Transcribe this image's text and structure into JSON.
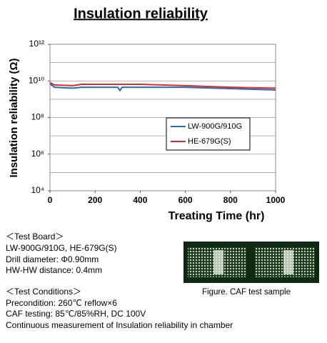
{
  "chart_data": {
    "type": "line",
    "title": "Insulation reliability",
    "xlabel": "Treating Time (hr)",
    "ylabel": "Insulation reliability (Ω)",
    "xlim": [
      0,
      1000
    ],
    "xticks": [
      0,
      200,
      400,
      600,
      800,
      1000
    ],
    "yscale": "log",
    "ylim": [
      10000.0,
      1000000000000.0
    ],
    "yticks": [
      {
        "value": 10000.0,
        "label": "10⁴"
      },
      {
        "value": 1000000.0,
        "label": "10⁶"
      },
      {
        "value": 100000000.0,
        "label": "10⁸"
      },
      {
        "value": 10000000000.0,
        "label": "10¹⁰"
      },
      {
        "value": 1000000000000.0,
        "label": "10¹²"
      }
    ],
    "ygrid": [
      100000.0,
      1000000.0,
      10000000.0,
      100000000.0,
      1000000000.0,
      10000000000.0,
      100000000000.0
    ],
    "legend": "center-right",
    "series": [
      {
        "name": "LW-900G/910G",
        "color": "#1f6fb8",
        "x": [
          0,
          20,
          100,
          140,
          300,
          310,
          320,
          600,
          800,
          1000
        ],
        "values": [
          7000000000.0,
          4500000000.0,
          4000000000.0,
          4500000000.0,
          4500000000.0,
          3000000000.0,
          4500000000.0,
          4500000000.0,
          3800000000.0,
          3200000000.0
        ]
      },
      {
        "name": "HE-679G(S)",
        "color": "#e8262a",
        "x": [
          0,
          20,
          100,
          140,
          400,
          600,
          800,
          1000
        ],
        "values": [
          8000000000.0,
          6000000000.0,
          5500000000.0,
          6500000000.0,
          6500000000.0,
          5500000000.0,
          4500000000.0,
          4000000000.0
        ]
      }
    ]
  },
  "test_board": {
    "heading": "＜Test Board＞",
    "lines": [
      "LW-900G/910G, HE-679G(S)",
      "Drill diameter: Φ0.90mm",
      "HW-HW distance: 0.4mm"
    ]
  },
  "test_conditions": {
    "heading": "＜Test Conditions＞",
    "lines": [
      "Precondition: 260℃ reflow×6",
      "CAF testing: 85℃/85%RH, DC 100V",
      "Continuous measurement of Insulation reliability in chamber"
    ]
  },
  "figure_caption": "Figure. CAF test sample"
}
